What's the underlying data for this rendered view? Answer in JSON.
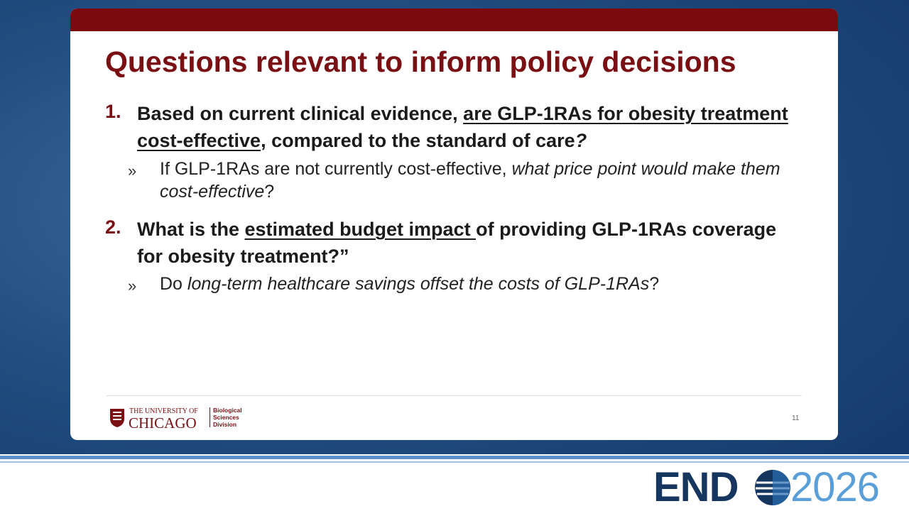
{
  "slide": {
    "title": "Questions relevant to inform policy decisions",
    "items": [
      {
        "number": "1.",
        "runs": [
          "Based on current clinical evidence, ",
          "are GLP-1RAs for obesity treatment cost-effective",
          ", compared to the standard of care",
          "?"
        ],
        "sub": {
          "bullet": "»",
          "runs": [
            "If GLP-1RAs are not currently cost-effective, ",
            "what price point would make them cost-effective",
            "?"
          ]
        }
      },
      {
        "number": "2.",
        "runs": [
          "What is the ",
          "estimated budget impact ",
          "of providing GLP-1RAs coverage for obesity treatment?”"
        ],
        "sub": {
          "bullet": "»",
          "runs": [
            "Do ",
            "long-term healthcare savings offset the costs of GLP-1RAs",
            "?"
          ]
        }
      }
    ],
    "footer": {
      "logo": {
        "line1": "THE UNIVERSITY OF",
        "line2": "CHICAGO",
        "division": [
          "Biological",
          "Sciences",
          "Division"
        ]
      },
      "page_number": "11"
    }
  },
  "branding": {
    "left": "END",
    "right": "2026"
  }
}
